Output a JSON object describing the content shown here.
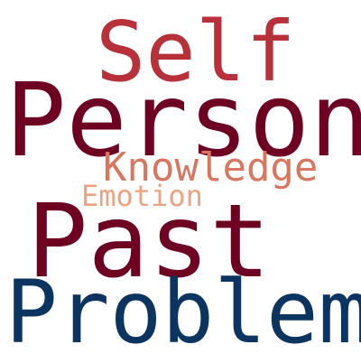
{
  "words": [
    {
      "text": "Self",
      "color": "#b8303a"
    },
    {
      "text": "Person",
      "color": "#6e0022"
    },
    {
      "text": "Knowledge",
      "color": "#d87660"
    },
    {
      "text": "Emotion",
      "color": "#eaa383"
    },
    {
      "text": "Past",
      "color": "#6e0022"
    },
    {
      "text": "Problem",
      "color": "#0b3461"
    }
  ]
}
